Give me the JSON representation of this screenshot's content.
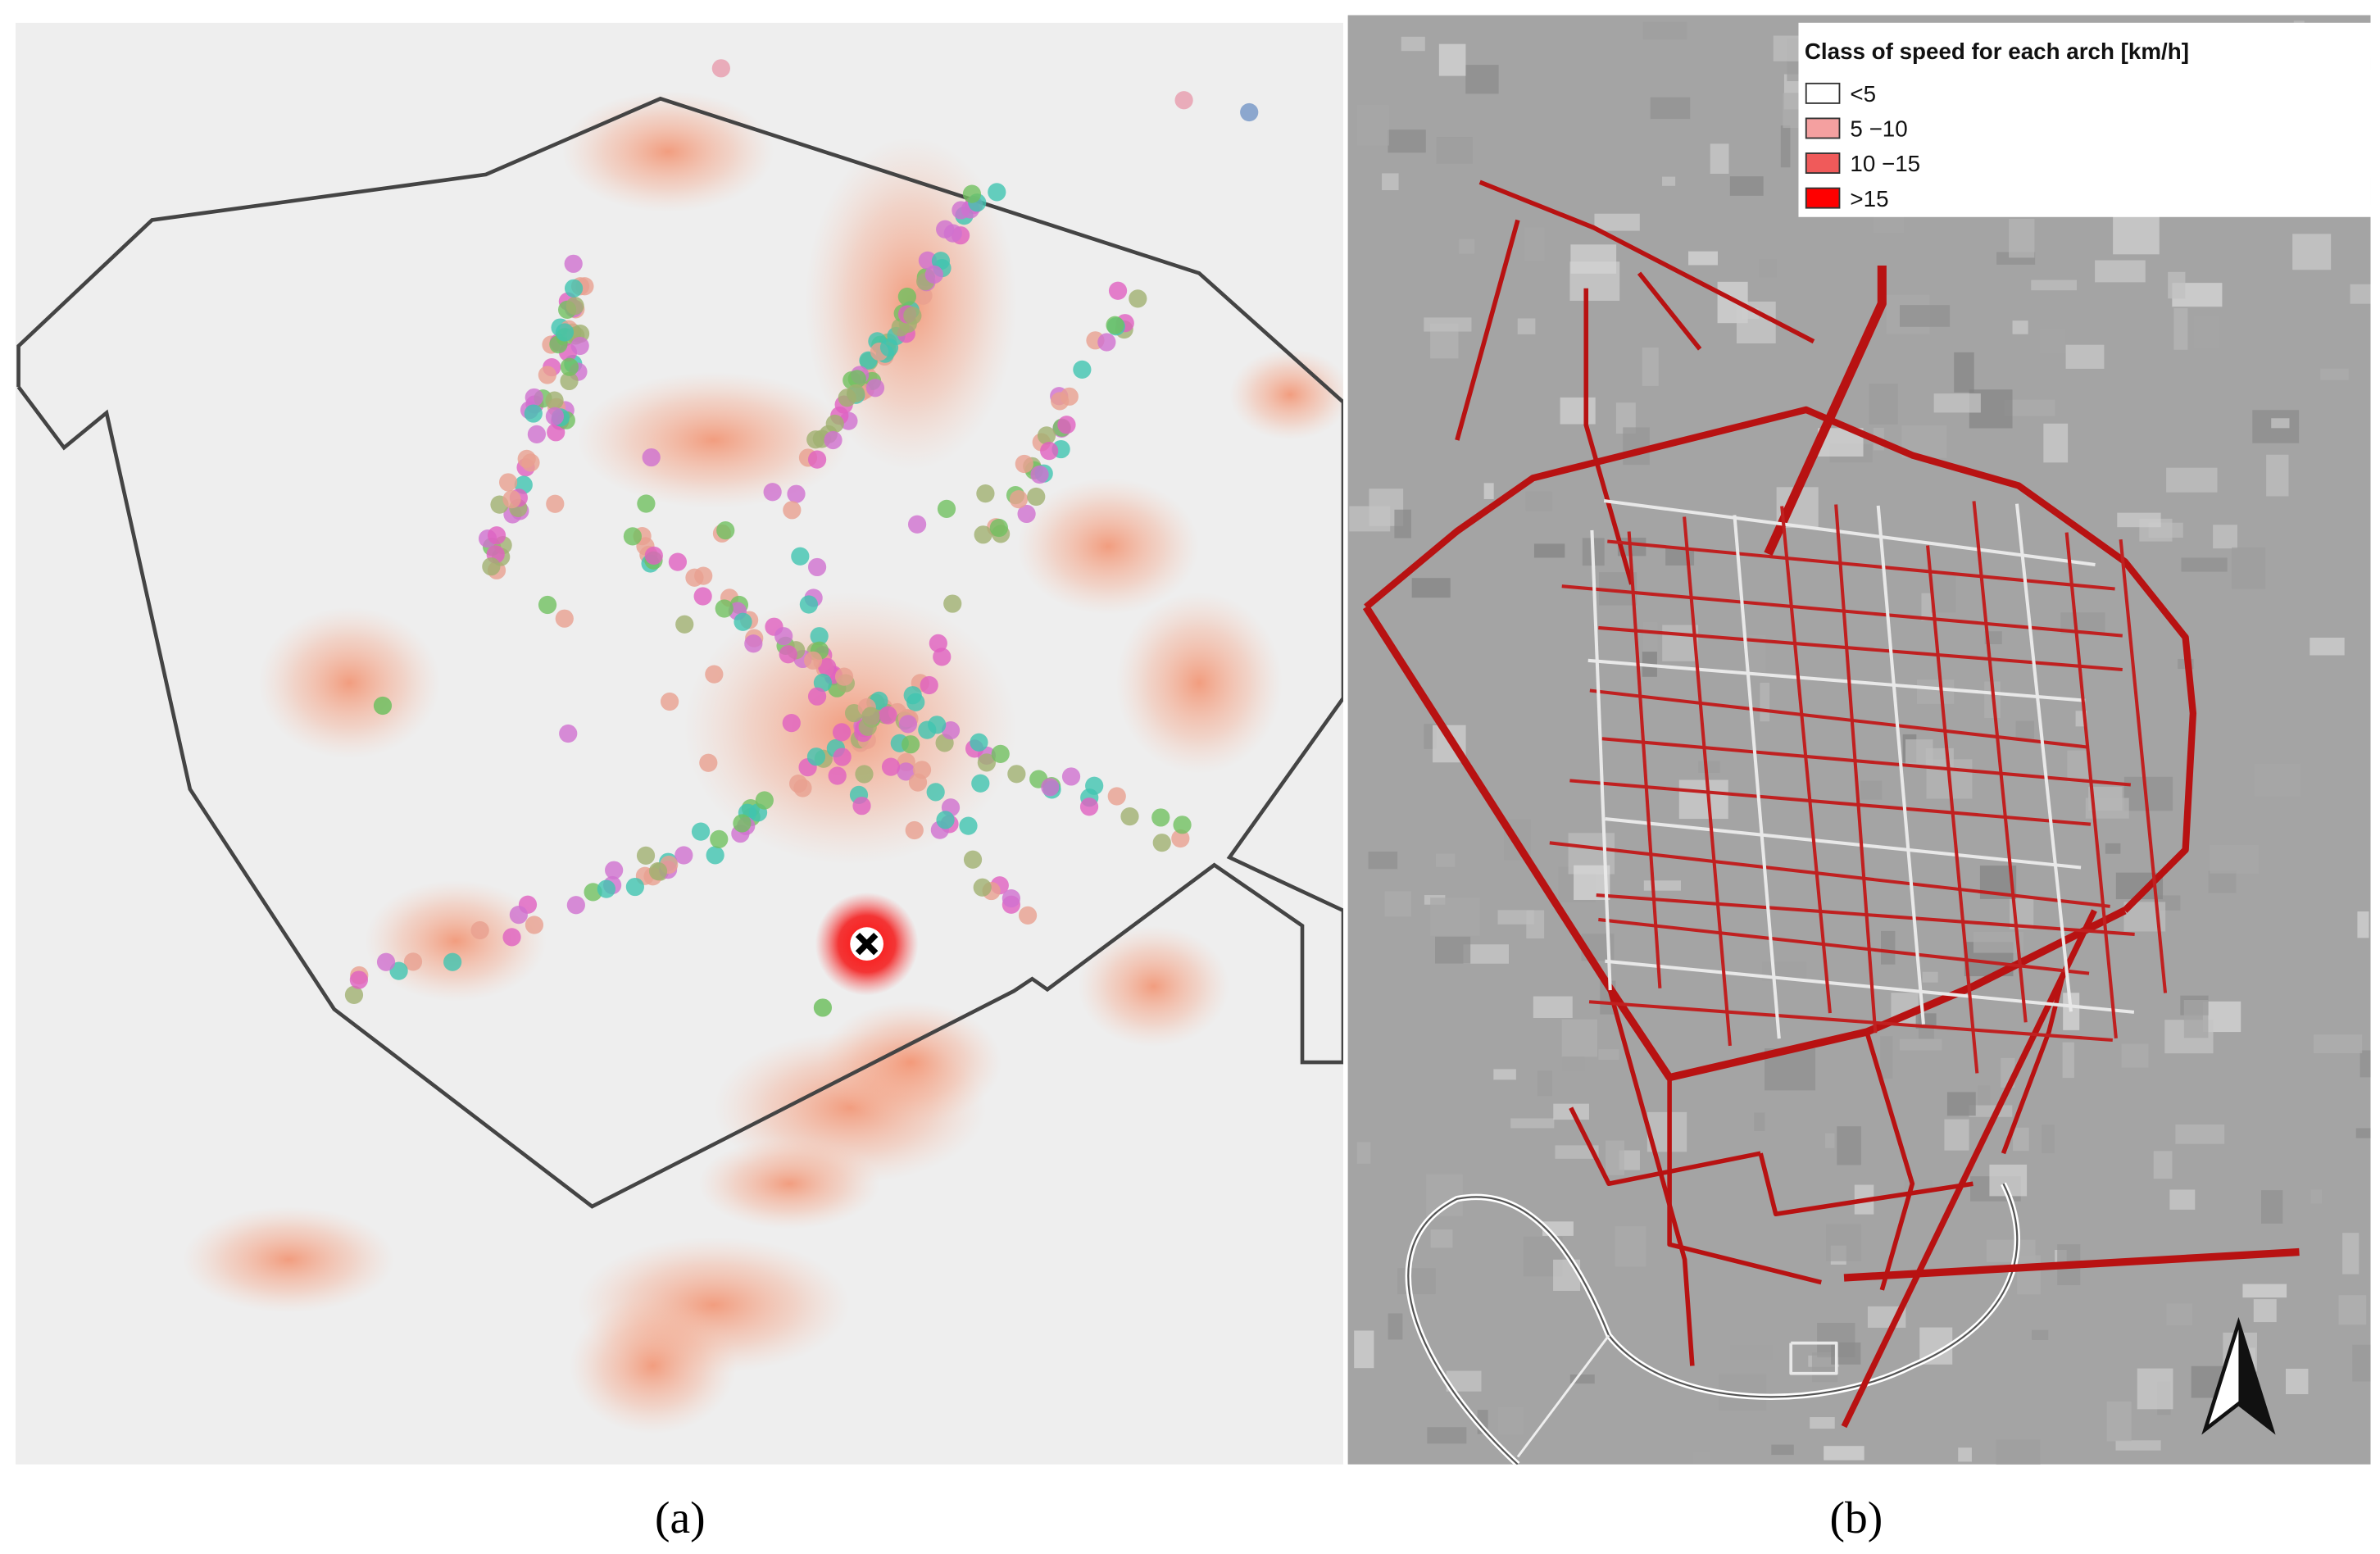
{
  "panels": [
    {
      "label": "(a)"
    },
    {
      "label": "(b)",
      "legend": {
        "title": "Class of speed for each arch [km/h]",
        "items": [
          {
            "label": "<5",
            "color": "#ffffff"
          },
          {
            "label": "5 −10",
            "color": "#f4a0a0"
          },
          {
            "label": "10 −15",
            "color": "#f05a5a"
          },
          {
            "label": ">15",
            "color": "#ff0000"
          }
        ]
      }
    }
  ]
}
